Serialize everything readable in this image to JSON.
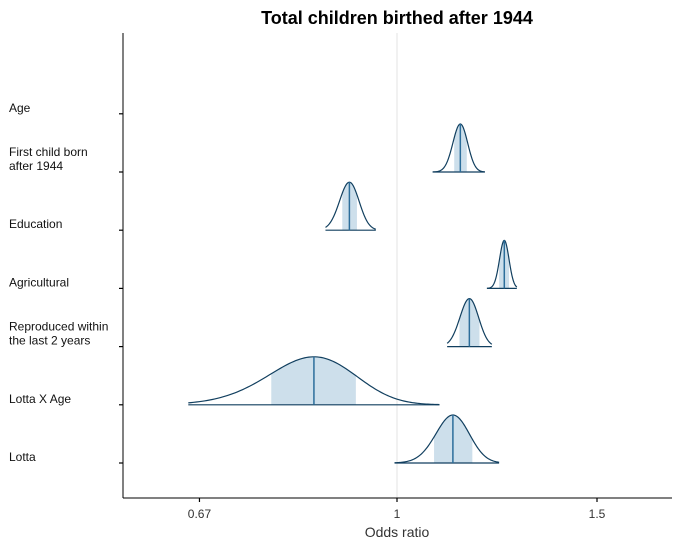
{
  "chart_data": {
    "type": "density-ridge",
    "title": "Total children birthed after 1944",
    "xlabel": "Odds ratio",
    "ylabel": "",
    "x_scale": "log",
    "xlim": [
      0.55,
      1.85
    ],
    "xticks": [
      0.67,
      1,
      1.5
    ],
    "xtick_labels": [
      "0.67",
      "1",
      "1.5"
    ],
    "reference_line": 1,
    "colors": {
      "fill": "#cddfeb",
      "stroke": "#113f5f",
      "median": "#2c6e9b",
      "refline": "#e3e3e3"
    },
    "series": [
      {
        "label": "Lotta",
        "median": 1.12,
        "inner": [
          1.078,
          1.165
        ],
        "outer": [
          0.995,
          1.23
        ],
        "sd": 0.038
      },
      {
        "label": "Lotta X Age",
        "median": 0.845,
        "inner": [
          0.775,
          0.92
        ],
        "outer": [
          0.655,
          1.09
        ],
        "sd": 0.075
      },
      {
        "label": "Reproduced within\nthe last 2 years",
        "median": 1.158,
        "inner": [
          1.135,
          1.182
        ],
        "outer": [
          1.107,
          1.212
        ],
        "sd": 0.022
      },
      {
        "label": "Agricultural",
        "median": 1.243,
        "inner": [
          1.23,
          1.255
        ],
        "outer": [
          1.2,
          1.275
        ],
        "sd": 0.012
      },
      {
        "label": "Education",
        "median": 0.908,
        "inner": [
          0.895,
          0.922
        ],
        "outer": [
          0.865,
          0.958
        ],
        "sd": 0.018
      },
      {
        "label": "First child born\nafter 1944",
        "median": 1.137,
        "inner": [
          1.123,
          1.152
        ],
        "outer": [
          1.075,
          1.195
        ],
        "sd": 0.017
      },
      {
        "label": "Age",
        "median": null,
        "inner": null,
        "outer": null,
        "sd": null
      }
    ]
  }
}
